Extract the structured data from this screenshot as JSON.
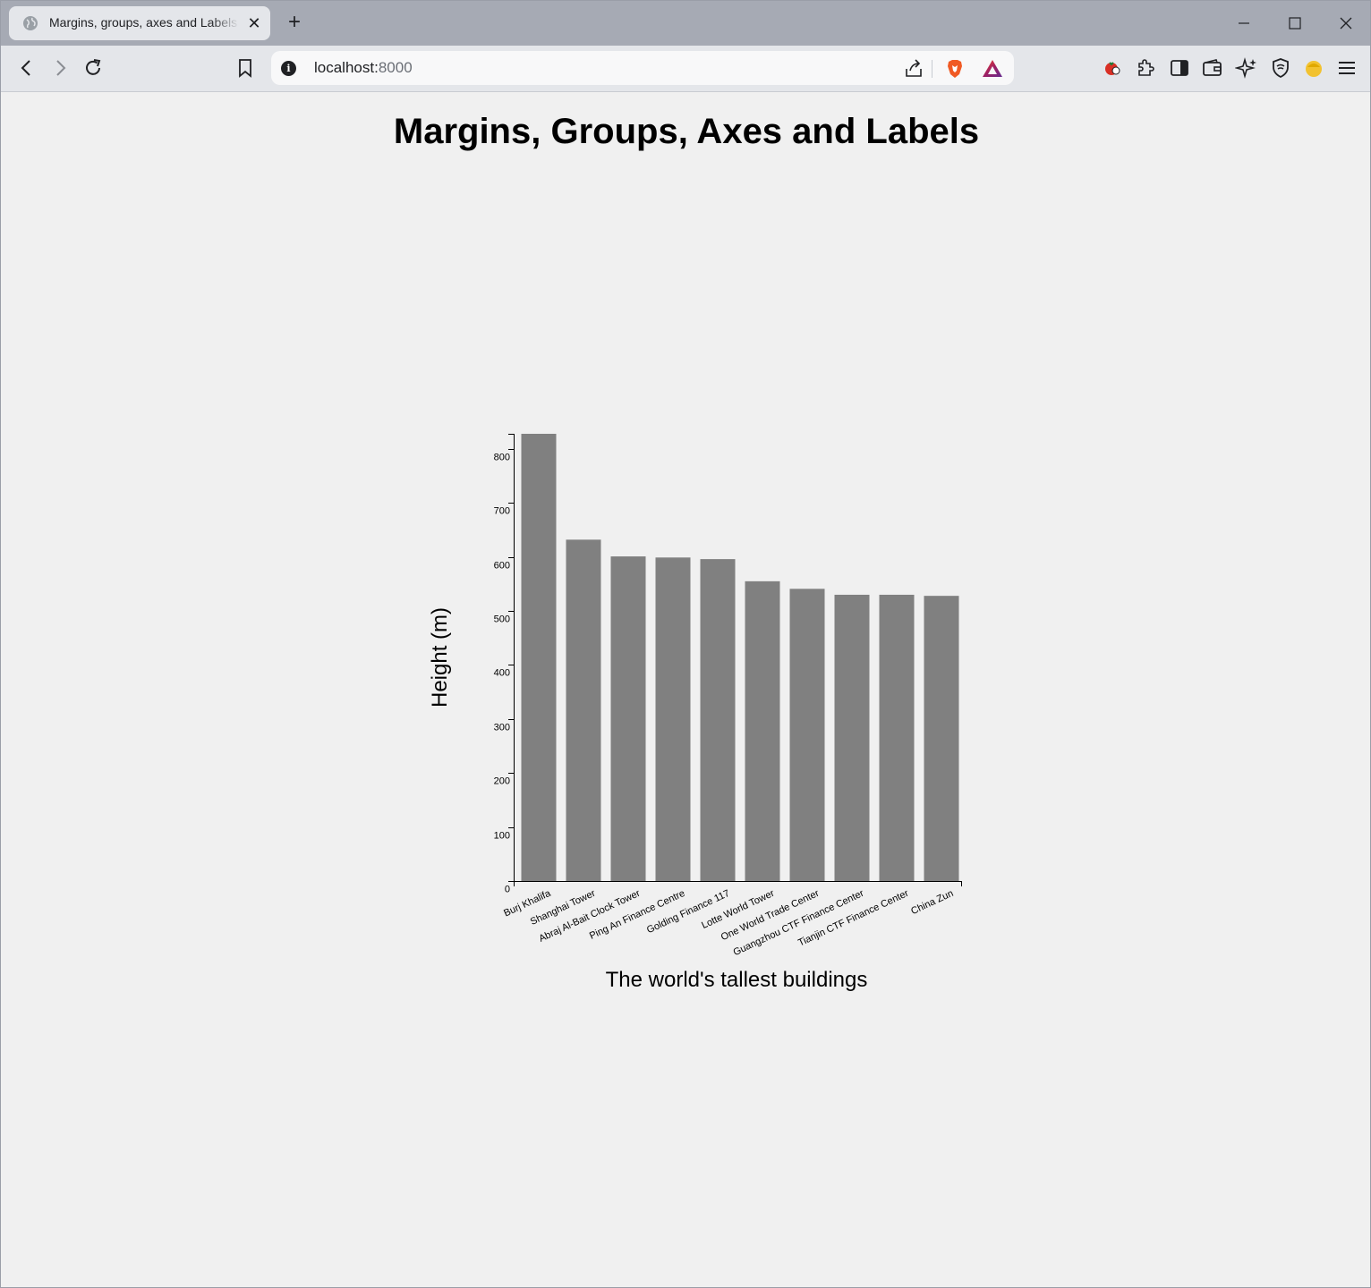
{
  "browser": {
    "tab_title": "Margins, groups, axes and Labels",
    "url_host": "localhost:",
    "url_port": "8000"
  },
  "page": {
    "heading": "Margins, Groups, Axes and Labels"
  },
  "chart_data": {
    "type": "bar",
    "categories": [
      "Burj Khalifa",
      "Shanghai Tower",
      "Abraj Al-Bait Clock Tower",
      "Ping An Finance Centre",
      "Golding Finance 117",
      "Lotte World Tower",
      "One World Trade Center",
      "Guangzhou CTF Finance Center",
      "Tianjin CTF Finance Center",
      "China Zun"
    ],
    "values": [
      828,
      632,
      601,
      599,
      596,
      555,
      541,
      530,
      530,
      528
    ],
    "xlabel": "The world's tallest buildings",
    "ylabel": "Height (m)",
    "ylim": [
      0,
      828
    ],
    "yticks": [
      0,
      100,
      200,
      300,
      400,
      500,
      600,
      700,
      800
    ],
    "bar_color": "#808080",
    "grid": false
  }
}
